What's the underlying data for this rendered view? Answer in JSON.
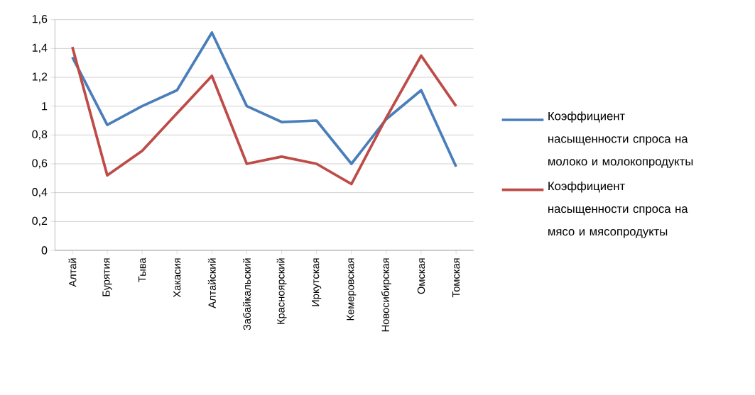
{
  "chart_data": {
    "type": "line",
    "categories": [
      "Алтай",
      "Бурятия",
      "Тыва",
      "Хакасия",
      "Алтайский",
      "Забайкальский",
      "Красноярский",
      "Иркутская",
      "Кемеровская",
      "Новосибирская",
      "Омская",
      "Томская"
    ],
    "series": [
      {
        "name": "Коэффициент насыщенности спроса на молоко и молокопродукты",
        "color": "#4a7ebb",
        "values": [
          1.34,
          0.87,
          1.0,
          1.11,
          1.51,
          1.0,
          0.89,
          0.9,
          0.6,
          0.91,
          1.11,
          0.58
        ]
      },
      {
        "name": "Коэффициент насыщенности спроса на мясо и мясопродукты",
        "color": "#be4b48",
        "values": [
          1.41,
          0.52,
          0.69,
          0.95,
          1.21,
          0.6,
          0.65,
          0.6,
          0.46,
          0.92,
          1.35,
          1.0
        ]
      }
    ],
    "ylim": [
      0,
      1.6
    ],
    "yticks": [
      0,
      {
        "value": 0.2,
        "label": "0,2"
      },
      {
        "value": 0.4,
        "label": "0,4"
      },
      {
        "value": 0.6,
        "label": "0,6"
      },
      {
        "value": 0.8,
        "label": "0,8"
      },
      1,
      {
        "value": 1.2,
        "label": "1,2"
      },
      {
        "value": 1.4,
        "label": "1,4"
      },
      {
        "value": 1.6,
        "label": "1,6"
      }
    ],
    "grid": "y",
    "legend": "right",
    "marker": "none",
    "line_style": "solid"
  }
}
